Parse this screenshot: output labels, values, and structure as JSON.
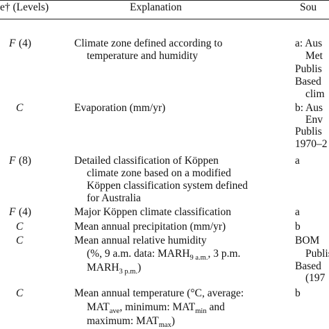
{
  "header": {
    "type": "e† (Levels)",
    "explanation": "Explanation",
    "source": "Sou"
  },
  "rows": [
    {
      "symbol": "F",
      "levels": "(4)",
      "explanation": [
        [
          "Climate zone defined according to"
        ],
        [
          "temperature and humidity"
        ]
      ],
      "source": [
        "a: Aus",
        "Met",
        "Publis",
        "Based",
        "clim"
      ]
    },
    {
      "symbol": "C",
      "explanation": [
        [
          "Evaporation (mm/yr)"
        ]
      ],
      "source": [
        "b: Aus",
        "Env",
        "Publis",
        "1970–2"
      ]
    },
    {
      "symbol": "F",
      "levels": "(8)",
      "explanation": [
        [
          "Detailed classification of Köppen"
        ],
        [
          "climate zone based on a modified"
        ],
        [
          "Köppen classification system defined"
        ],
        [
          "for Australia"
        ]
      ],
      "source": [
        "a"
      ]
    },
    {
      "symbol": "F",
      "levels": "(4)",
      "explanation": [
        [
          "Major Köppen climate classification"
        ]
      ],
      "source": [
        "a"
      ]
    },
    {
      "symbol": "C",
      "explanation": [
        [
          "Mean annual precipitation (mm/yr)"
        ]
      ],
      "source": [
        "b"
      ]
    },
    {
      "symbol": "C",
      "explanation": [
        [
          "Mean annual relative humidity"
        ],
        [
          "(%, 9 a.m. data: MARH",
          {
            "sub": "9 a.m."
          },
          ", 3 p.m."
        ],
        [
          "MARH",
          {
            "sub": "3 p.m."
          },
          ")"
        ]
      ],
      "source": [
        "BOM",
        "Publis",
        "Based",
        "(197"
      ]
    },
    {
      "symbol": "C",
      "explanation": [
        [
          "Mean annual temperature (°C, average:"
        ],
        [
          "MAT",
          {
            "sub": "ave"
          },
          ", minimum: MAT",
          {
            "sub": "min"
          },
          " and"
        ],
        [
          "maximum: MAT",
          {
            "sub": "max"
          },
          ")"
        ]
      ],
      "source": [
        "b"
      ]
    }
  ]
}
